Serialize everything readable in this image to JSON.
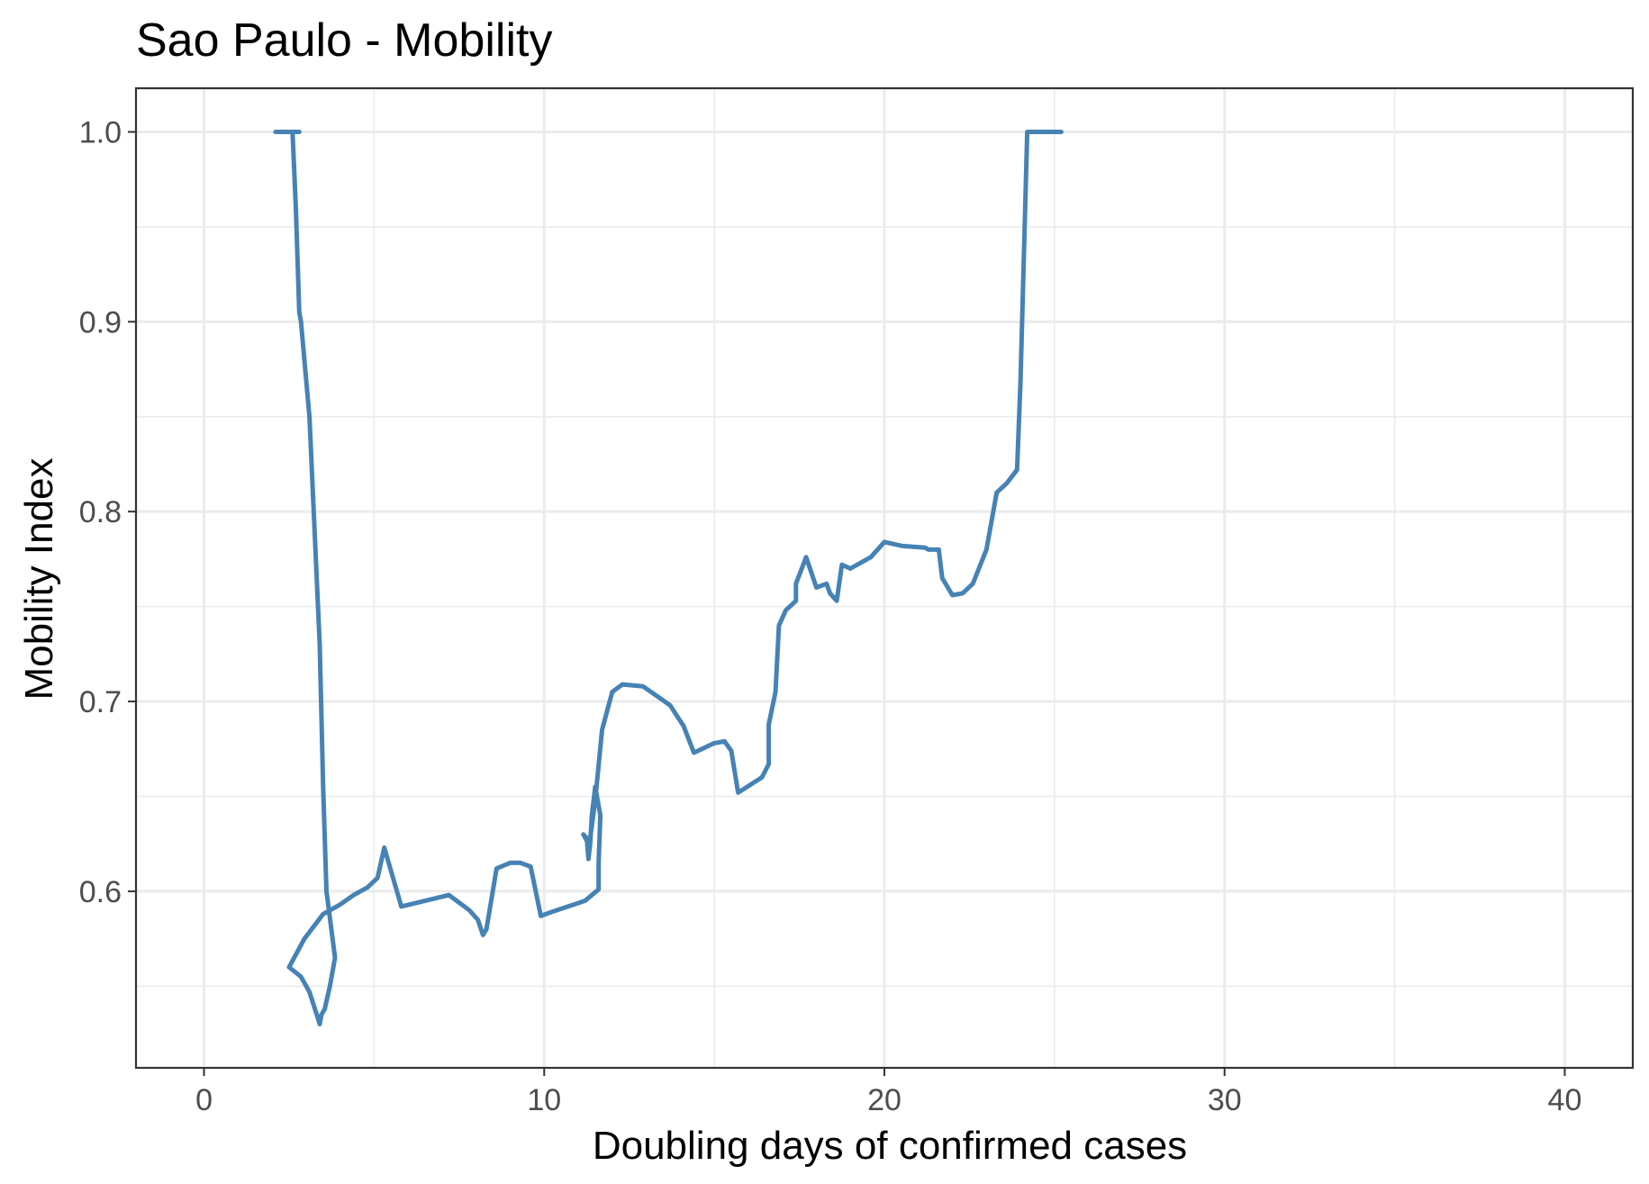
{
  "chart_data": {
    "type": "line",
    "title": "Sao Paulo - Mobility",
    "xlabel": "Doubling days of confirmed cases",
    "ylabel": "Mobility Index",
    "xlim": [
      -2,
      42
    ],
    "ylim": [
      0.507,
      1.023
    ],
    "x_ticks": [
      0,
      10,
      20,
      30,
      40
    ],
    "x_tick_labels": [
      "0",
      "10",
      "20",
      "30",
      "40"
    ],
    "y_ticks": [
      0.6,
      0.7,
      0.8,
      0.9,
      1.0
    ],
    "y_tick_labels": [
      "0.6",
      "0.7",
      "0.8",
      "0.9",
      "1.0"
    ],
    "grid": true,
    "legend": "none",
    "series_color": "#4682b4",
    "series": [
      {
        "x": [
          2.1,
          2.5,
          2.8,
          2.6,
          2.7,
          2.8,
          2.85,
          3.1,
          3.2,
          3.4,
          3.5,
          3.6,
          3.85,
          3.7,
          3.55,
          3.45,
          3.4,
          3.35,
          3.1,
          2.85,
          2.5,
          2.95,
          3.5,
          4.0,
          4.4,
          4.8,
          5.1,
          5.3,
          5.8,
          6.5,
          7.2,
          7.8,
          8.05,
          8.2,
          8.3,
          8.6,
          9.0,
          9.3,
          9.6,
          9.9,
          10.2,
          10.7,
          11.2,
          11.4,
          11.6,
          11.6,
          11.65,
          11.5,
          11.4,
          11.35,
          11.3,
          11.25,
          11.15,
          11.3,
          11.35,
          11.5,
          11.7,
          12.0,
          12.3,
          12.9,
          13.3,
          13.7,
          14.1,
          14.4,
          15.0,
          15.3,
          15.5,
          15.7,
          16.4,
          16.6,
          16.6,
          16.8,
          16.9,
          17.1,
          17.4,
          17.4,
          17.7,
          18.0,
          18.3,
          18.4,
          18.6,
          18.75,
          19.0,
          19.2,
          19.6,
          20.0,
          20.5,
          21.2,
          21.3,
          21.6,
          21.7,
          22.0,
          22.3,
          22.6,
          23.0,
          23.3,
          23.6,
          23.9,
          24.0,
          24.2,
          24.4,
          24.5,
          25.2
        ],
        "y": [
          1.0,
          1.0,
          1.0,
          1.0,
          0.96,
          0.905,
          0.9,
          0.85,
          0.81,
          0.73,
          0.655,
          0.6,
          0.565,
          0.55,
          0.538,
          0.535,
          0.53,
          0.533,
          0.547,
          0.555,
          0.56,
          0.575,
          0.588,
          0.593,
          0.598,
          0.602,
          0.607,
          0.623,
          0.592,
          0.595,
          0.598,
          0.59,
          0.585,
          0.577,
          0.58,
          0.612,
          0.615,
          0.615,
          0.613,
          0.587,
          0.589,
          0.592,
          0.595,
          0.598,
          0.601,
          0.615,
          0.64,
          0.655,
          0.64,
          0.625,
          0.617,
          0.628,
          0.63,
          0.625,
          0.628,
          0.648,
          0.685,
          0.705,
          0.709,
          0.708,
          0.703,
          0.698,
          0.687,
          0.673,
          0.678,
          0.679,
          0.674,
          0.652,
          0.66,
          0.667,
          0.688,
          0.705,
          0.74,
          0.748,
          0.753,
          0.762,
          0.776,
          0.76,
          0.762,
          0.757,
          0.753,
          0.772,
          0.77,
          0.772,
          0.776,
          0.784,
          0.782,
          0.781,
          0.78,
          0.78,
          0.765,
          0.756,
          0.757,
          0.762,
          0.78,
          0.81,
          0.815,
          0.822,
          0.868,
          1.0,
          1.0,
          1.0,
          1.0
        ]
      }
    ]
  }
}
